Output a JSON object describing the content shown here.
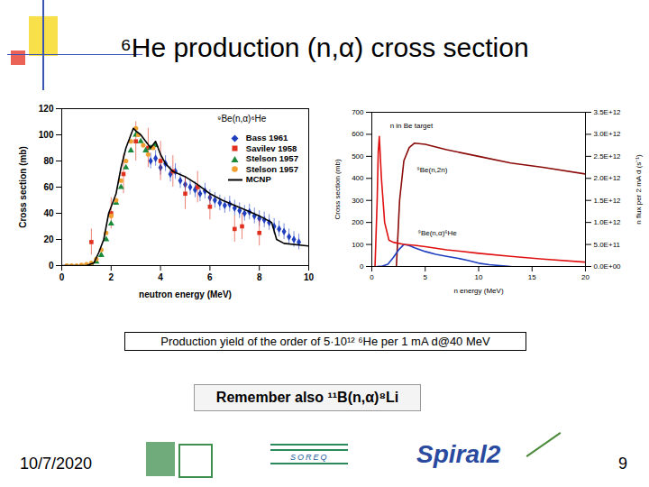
{
  "slide": {
    "title": "⁶He production (n,α) cross section",
    "caption": "Production yield of the order of 5·10¹² ⁶He per 1 mA d@40 MeV",
    "note": "Remember also ¹¹B(n,α)⁸Li",
    "date": "10/7/2020",
    "page": "9",
    "logos": [
      "SOREQ",
      "Spiral2"
    ]
  },
  "chart_data": [
    {
      "type": "scatter",
      "xlabel": "neutron energy (MeV)",
      "ylabel": "Cross section (mb)",
      "xlim": [
        0,
        10
      ],
      "xticks": [
        0,
        2,
        4,
        6,
        8,
        10
      ],
      "ylim": [
        0,
        120
      ],
      "yticks": [
        0,
        20,
        40,
        60,
        80,
        100,
        120
      ],
      "legend": "top-right",
      "annotations": [
        {
          "text": "⁹Be(n,α)⁶He",
          "x": 6.3,
          "y": 112
        }
      ],
      "series": [
        {
          "name": "Bass 1961",
          "type": "scatter",
          "color": "#1f3fbf",
          "marker": "diamond",
          "x": [
            3.6,
            3.8,
            4.0,
            4.2,
            4.4,
            4.6,
            4.8,
            5.0,
            5.2,
            5.4,
            5.6,
            5.8,
            6.0,
            6.2,
            6.4,
            6.6,
            6.8,
            7.0,
            7.2,
            7.4,
            7.6,
            7.8,
            8.0,
            8.2,
            8.4,
            8.6,
            8.8,
            9.0,
            9.2,
            9.4,
            9.6
          ],
          "values": [
            80,
            82,
            75,
            78,
            70,
            72,
            65,
            62,
            60,
            58,
            55,
            57,
            52,
            50,
            48,
            46,
            47,
            44,
            42,
            40,
            41,
            38,
            36,
            35,
            33,
            30,
            28,
            26,
            22,
            20,
            18
          ],
          "errors": [
            6,
            6,
            6,
            6,
            6,
            6,
            6,
            6,
            6,
            6,
            6,
            6,
            6,
            6,
            6,
            6,
            6,
            6,
            6,
            6,
            6,
            6,
            6,
            6,
            6,
            6,
            6,
            6,
            6,
            6,
            6
          ]
        },
        {
          "name": "Savilev 1958",
          "type": "scatter",
          "color": "#e0301e",
          "marker": "square",
          "x": [
            1.2,
            2.0,
            2.5,
            3.0,
            3.5,
            4.0,
            4.5,
            5.0,
            5.5,
            6.0,
            7.0,
            7.3,
            8.0
          ],
          "values": [
            18,
            40,
            70,
            95,
            90,
            80,
            72,
            55,
            60,
            45,
            28,
            30,
            25
          ],
          "errors": [
            10,
            12,
            15,
            15,
            15,
            15,
            12,
            12,
            12,
            10,
            10,
            10,
            10
          ]
        },
        {
          "name": "Stelson 1957",
          "type": "scatter",
          "color": "#1a8a3a",
          "marker": "triangle",
          "x": [
            1.0,
            1.2,
            1.4,
            1.6,
            1.8,
            2.0,
            2.2,
            2.4,
            2.6,
            2.8,
            3.0,
            3.2,
            3.4,
            3.6,
            3.8
          ],
          "values": [
            0,
            1,
            3,
            8,
            20,
            32,
            48,
            60,
            75,
            88,
            100,
            95,
            88,
            90,
            92
          ]
        },
        {
          "name": "Stelson 1957",
          "type": "scatter",
          "color": "#f0a030",
          "marker": "circle",
          "x": [
            0.2,
            0.4,
            0.6,
            0.8,
            1.0,
            1.2,
            1.4,
            1.6,
            1.8,
            2.0,
            2.2,
            2.4,
            2.6,
            2.8,
            3.0,
            3.1,
            3.3,
            3.5,
            3.7
          ],
          "values": [
            0,
            0,
            0,
            0.5,
            1,
            2,
            5,
            12,
            25,
            38,
            50,
            65,
            80,
            95,
            105,
            100,
            92,
            85,
            90
          ]
        },
        {
          "name": "MCNP",
          "type": "line",
          "color": "#000000",
          "line_style": "solid",
          "x": [
            0,
            1.0,
            1.3,
            1.5,
            1.7,
            1.9,
            2.0,
            2.2,
            2.4,
            2.6,
            2.8,
            2.9,
            3.0,
            3.2,
            3.4,
            3.6,
            3.8,
            4.0,
            4.2,
            4.5,
            5.0,
            5.5,
            6.0,
            6.5,
            7.0,
            7.5,
            8.0,
            8.5,
            8.7,
            9.0,
            10.0
          ],
          "values": [
            0,
            0,
            2,
            10,
            20,
            40,
            45,
            55,
            75,
            90,
            100,
            105,
            103,
            100,
            95,
            90,
            95,
            85,
            78,
            72,
            68,
            62,
            55,
            50,
            46,
            42,
            38,
            33,
            20,
            17,
            15
          ]
        }
      ]
    },
    {
      "type": "line",
      "xlabel": "n energy (MeV)",
      "ylabel": "Cross section (mb)",
      "y2label": "n flux per 2 mA d (s⁻¹)",
      "xlim": [
        0,
        20
      ],
      "xticks": [
        0,
        5,
        10,
        15,
        20
      ],
      "ylim": [
        0,
        700
      ],
      "yticks": [
        0,
        100,
        200,
        300,
        400,
        500,
        600,
        700
      ],
      "y2lim": [
        0,
        3500000000000
      ],
      "y2ticks": [
        {
          "value": 0,
          "label": "0.0E+00"
        },
        {
          "value": 500000000000,
          "label": "5.0E+11"
        },
        {
          "value": 1000000000000,
          "label": "1.0E+12"
        },
        {
          "value": 1500000000000,
          "label": "1.5E+12"
        },
        {
          "value": 2000000000000,
          "label": "2.0E+12"
        },
        {
          "value": 2500000000000,
          "label": "2.5E+12"
        },
        {
          "value": 3000000000000,
          "label": "3.0E+12"
        },
        {
          "value": 3500000000000,
          "label": "3.5E+12"
        }
      ],
      "annotations": [
        {
          "text": "n in Be target",
          "x": 1.7,
          "y": 640
        },
        {
          "text": "⁹Be(n,2n)",
          "x": 4.2,
          "y": 440
        },
        {
          "text": "⁹Be(n,α)⁶He",
          "x": 4.3,
          "y": 150
        }
      ],
      "series": [
        {
          "name": "n in Be target",
          "axis": "y2",
          "color": "#e01010",
          "line_style": "solid",
          "x": [
            0.3,
            0.5,
            0.6,
            0.7,
            0.9,
            1.2,
            1.6,
            2,
            3,
            4,
            5,
            7,
            10,
            13,
            16,
            20
          ],
          "values": [
            0,
            1500000000000,
            2600000000000,
            2950000000000,
            2000000000000,
            1000000000000,
            600000000000,
            550000000000,
            500000000000,
            480000000000,
            450000000000,
            380000000000,
            300000000000,
            230000000000,
            170000000000,
            100000000000
          ]
        },
        {
          "name": "⁹Be(n,2n)",
          "color": "#8b0a0a",
          "line_style": "solid",
          "x": [
            2.3,
            2.6,
            3.0,
            3.5,
            4.0,
            5.0,
            7.0,
            10.0,
            13.0,
            16.0,
            20.0
          ],
          "values": [
            0,
            300,
            480,
            540,
            560,
            555,
            530,
            500,
            470,
            450,
            420
          ]
        },
        {
          "name": "⁹Be(n,α)⁶He",
          "color": "#1f3fbf",
          "line_style": "solid",
          "x": [
            0.5,
            1,
            1.5,
            2,
            2.5,
            3,
            3.5,
            4,
            5,
            6,
            7,
            8,
            9,
            10,
            11,
            12,
            13
          ],
          "values": [
            0,
            2,
            10,
            40,
            75,
            100,
            95,
            85,
            68,
            55,
            46,
            38,
            28,
            15,
            8,
            4,
            0
          ]
        }
      ]
    }
  ]
}
